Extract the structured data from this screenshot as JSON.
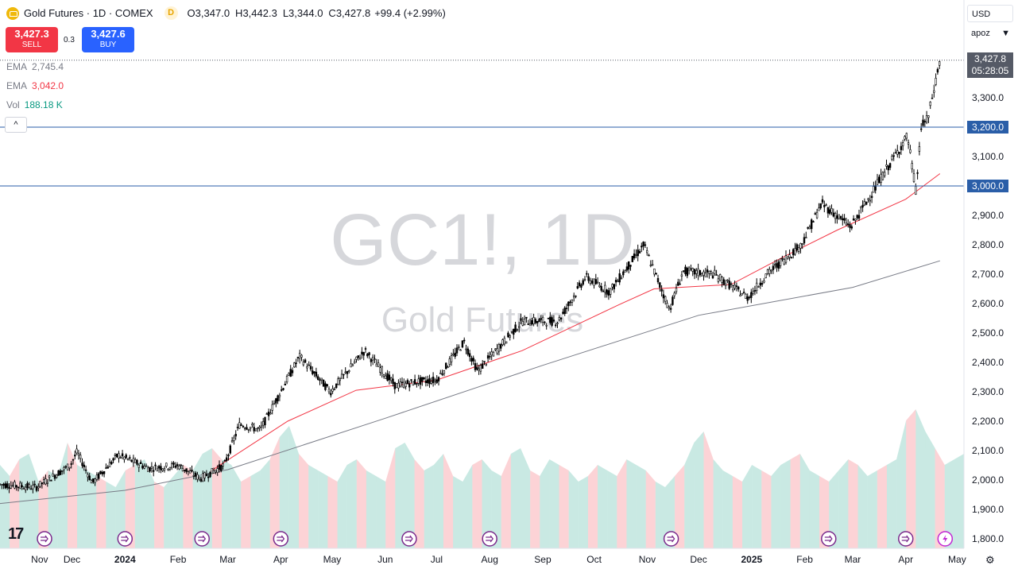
{
  "header": {
    "title": "Gold Futures · 1D · COMEX",
    "interval_badge": "D",
    "ohlc": [
      {
        "k": "O",
        "v": "3,347.0"
      },
      {
        "k": "H",
        "v": "3,442.3"
      },
      {
        "k": "L",
        "v": "3,344.0"
      },
      {
        "k": "C",
        "v": "3,427.8"
      }
    ],
    "change": "+99.4 (+2.99%)"
  },
  "trade": {
    "sell_price": "3,427.3",
    "sell_label": "SELL",
    "spread": "0.3",
    "buy_price": "3,427.6",
    "buy_label": "BUY"
  },
  "indicators": [
    {
      "name": "EMA",
      "value": "2,745.4",
      "color": "#787b86"
    },
    {
      "name": "EMA",
      "value": "3,042.0",
      "color": "#f23645"
    },
    {
      "name": "Vol",
      "value": "188.18 K",
      "color": "#089981"
    }
  ],
  "collapse_glyph": "^",
  "currency": "USD",
  "scale_mode": "apoz",
  "last_price": {
    "value": "3,427.8",
    "countdown": "05:28:05"
  },
  "levels": [
    {
      "label": "3,200.0",
      "value": 3200
    },
    {
      "label": "3,000.0",
      "value": 3000
    }
  ],
  "watermark": {
    "symbol": "GC1!, 1D",
    "name": "Gold Futures"
  },
  "brand": "17",
  "colors": {
    "up": "#089981",
    "down": "#f23645",
    "ema_long": "#787b86",
    "ema_short": "#f23645",
    "level_line": "#2a5ea8"
  },
  "chart_data": {
    "type": "candlestick",
    "title": "Gold Futures · 1D · COMEX",
    "y_axis_ticks": [
      "3,300.0",
      "3,100.0",
      "2,900.0",
      "2,800.0",
      "2,700.0",
      "2,600.0",
      "2,500.0",
      "2,400.0",
      "2,300.0",
      "2,200.0",
      "2,100.0",
      "2,000.0",
      "1,900.0",
      "1,800.0"
    ],
    "y_tick_values": [
      3300,
      3100,
      2900,
      2800,
      2700,
      2600,
      2500,
      2400,
      2300,
      2200,
      2100,
      2000,
      1900,
      1800
    ],
    "x_labels": [
      "Nov",
      "Dec",
      "2024",
      "Feb",
      "Mar",
      "Apr",
      "May",
      "Jun",
      "Jul",
      "Aug",
      "Sep",
      "Oct",
      "Nov",
      "Dec",
      "2025",
      "Feb",
      "Mar",
      "Apr",
      "May"
    ],
    "x_label_dates": [
      "2023-11-01",
      "2023-12-01",
      "2024-01-01",
      "2024-02-01",
      "2024-03-01",
      "2024-04-01",
      "2024-05-01",
      "2024-06-01",
      "2024-07-01",
      "2024-08-01",
      "2024-09-01",
      "2024-10-01",
      "2024-11-01",
      "2024-12-01",
      "2025-01-01",
      "2025-02-01",
      "2025-03-01",
      "2025-04-01",
      "2025-05-01"
    ],
    "x_range": [
      "2023-10-20",
      "2025-05-05"
    ],
    "ylim": [
      1775,
      3475
    ],
    "price_path": {
      "dates": [
        "2023-10-20",
        "2023-11-10",
        "2023-11-30",
        "2023-12-04",
        "2023-12-13",
        "2023-12-28",
        "2024-01-15",
        "2024-02-01",
        "2024-02-14",
        "2024-02-28",
        "2024-03-08",
        "2024-03-20",
        "2024-04-05",
        "2024-04-12",
        "2024-04-30",
        "2024-05-20",
        "2024-06-07",
        "2024-06-20",
        "2024-07-01",
        "2024-07-17",
        "2024-07-25",
        "2024-08-20",
        "2024-09-10",
        "2024-09-26",
        "2024-10-10",
        "2024-10-30",
        "2024-11-14",
        "2024-11-22",
        "2024-12-10",
        "2024-12-30",
        "2025-01-10",
        "2025-01-30",
        "2025-02-11",
        "2025-02-28",
        "2025-03-20",
        "2025-04-02",
        "2025-04-07",
        "2025-04-10",
        "2025-04-14",
        "2025-04-21"
      ],
      "close": [
        1985,
        1975,
        2050,
        2095,
        1990,
        2085,
        2040,
        2050,
        2005,
        2050,
        2190,
        2170,
        2345,
        2420,
        2300,
        2440,
        2320,
        2335,
        2340,
        2470,
        2370,
        2540,
        2540,
        2690,
        2640,
        2800,
        2580,
        2710,
        2700,
        2620,
        2700,
        2800,
        2940,
        2860,
        3050,
        3170,
        2980,
        3200,
        3230,
        3427.8
      ]
    },
    "ema_long": {
      "dates": [
        "2023-10-20",
        "2024-01-01",
        "2024-03-01",
        "2024-06-01",
        "2024-09-01",
        "2024-12-01",
        "2025-03-01",
        "2025-04-21"
      ],
      "values": [
        1920,
        1965,
        2035,
        2210,
        2390,
        2560,
        2655,
        2745.4
      ]
    },
    "ema_short": {
      "dates": [
        "2024-02-20",
        "2024-04-05",
        "2024-05-15",
        "2024-07-01",
        "2024-08-20",
        "2024-10-15",
        "2024-11-05",
        "2024-12-20",
        "2025-01-20",
        "2025-02-20",
        "2025-04-01",
        "2025-04-21"
      ],
      "values": [
        2030,
        2200,
        2305,
        2340,
        2440,
        2595,
        2650,
        2665,
        2760,
        2850,
        2955,
        3042
      ]
    },
    "volume_scale_max": 250,
    "volume_levels": [
      150,
      130,
      160,
      170,
      120,
      140,
      130,
      190,
      150,
      140,
      130,
      120,
      110,
      140,
      150,
      160,
      120,
      110,
      130,
      150,
      140,
      170,
      180,
      160,
      150,
      120,
      130,
      140,
      160,
      200,
      220,
      170,
      150,
      140,
      130,
      120,
      150,
      160,
      140,
      130,
      120,
      180,
      190,
      160,
      140,
      150,
      170,
      130,
      120,
      150,
      160,
      140,
      130,
      170,
      180,
      140,
      130,
      160,
      150,
      140,
      120,
      130,
      150,
      140,
      130,
      160,
      150,
      140,
      120,
      110,
      130,
      150,
      190,
      210,
      160,
      140,
      130,
      120,
      150,
      140,
      130,
      150,
      160,
      170,
      140,
      130,
      120,
      140,
      160,
      150,
      130,
      140,
      150,
      160,
      230,
      250,
      210,
      180,
      150,
      160,
      170
    ]
  },
  "event_markers": [
    "2023-11-15",
    "2024-01-01",
    "2024-02-15",
    "2024-04-01",
    "2024-06-15",
    "2024-08-01",
    "2024-11-15",
    "2025-02-15",
    "2025-04-01",
    "2025-04-24"
  ]
}
